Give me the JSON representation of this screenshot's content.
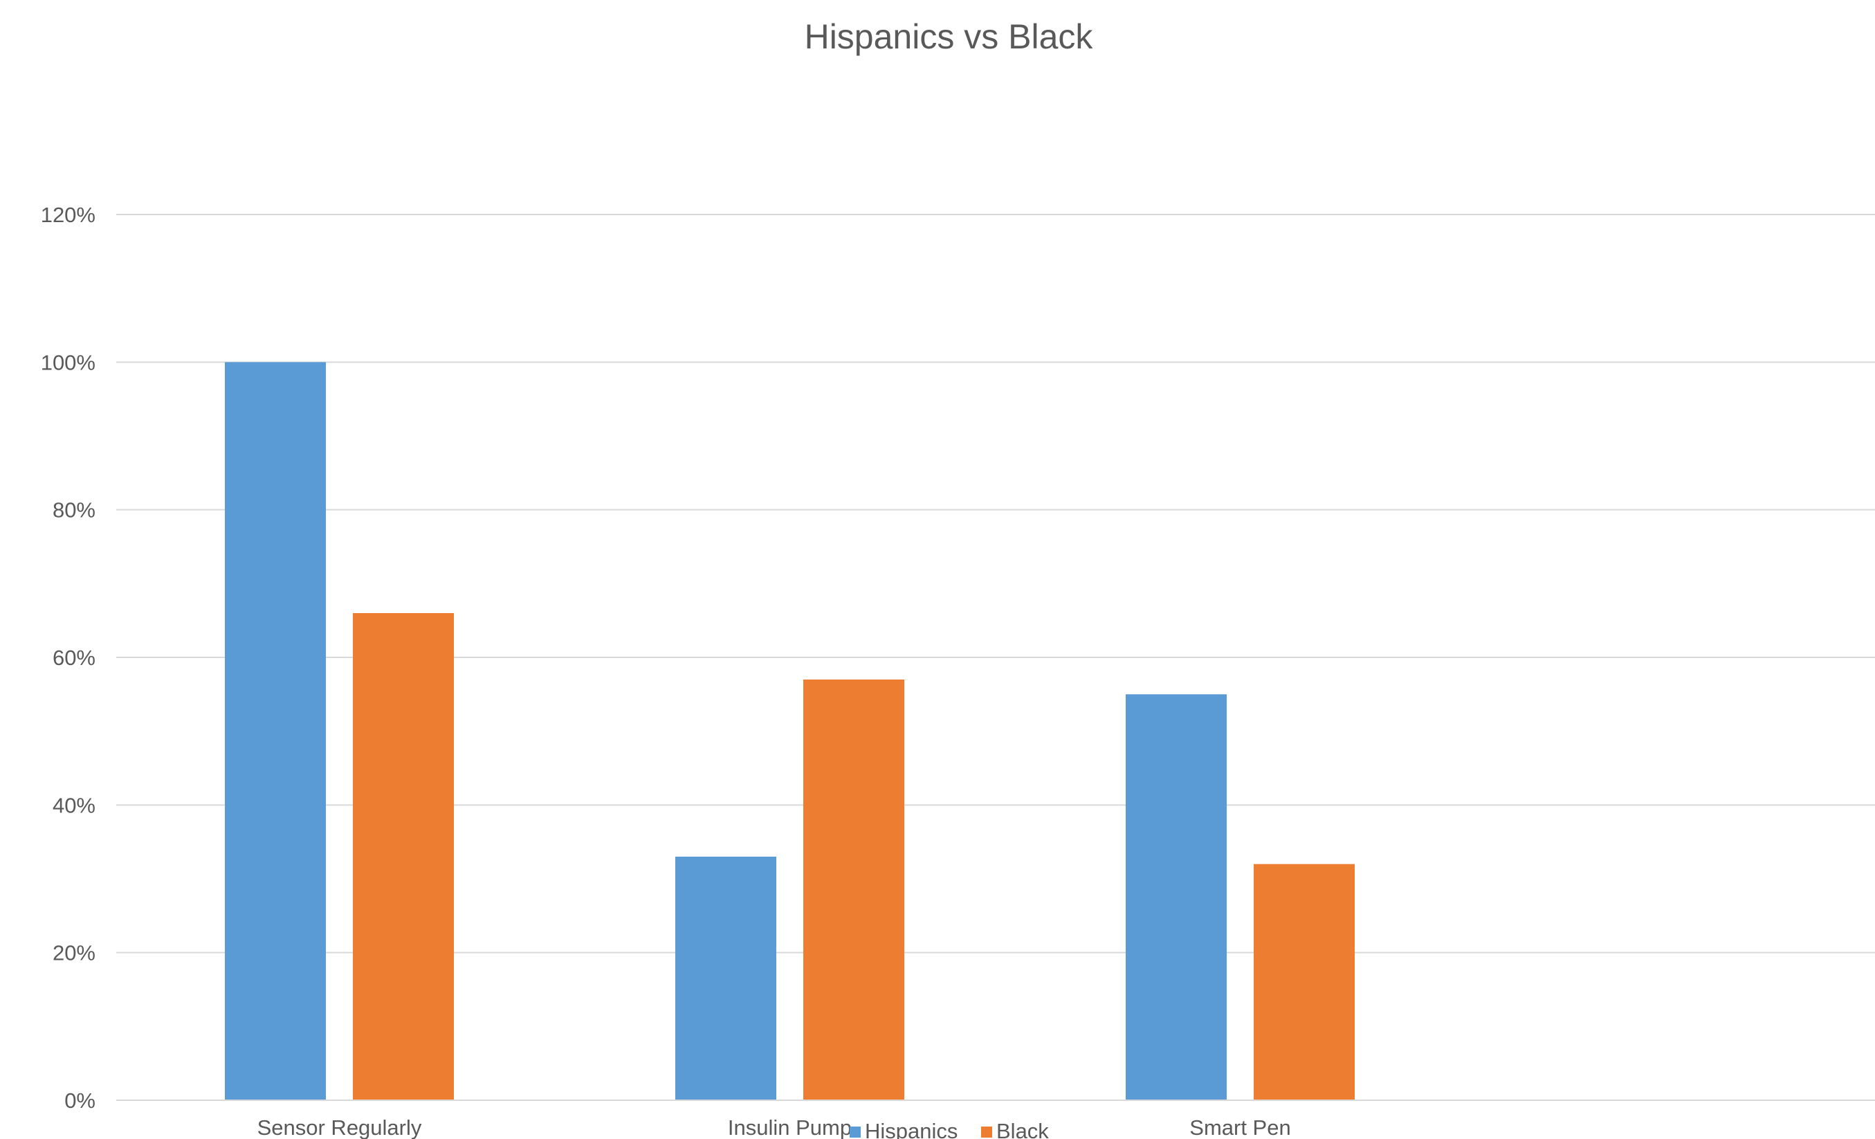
{
  "chart_data": {
    "type": "bar",
    "title": "Hispanics vs Black",
    "xlabel": "",
    "ylabel": "",
    "categories": [
      "Sensor Regularly",
      "Insulin Pump",
      "Smart Pen"
    ],
    "series": [
      {
        "name": "Hispanics",
        "color": "#5b9bd5",
        "values": [
          1.0,
          0.33,
          0.55
        ]
      },
      {
        "name": "Black",
        "color": "#ed7d31",
        "values": [
          0.66,
          0.57,
          0.32
        ]
      }
    ],
    "ylim": [
      0,
      1.2
    ],
    "yticks": [
      0,
      0.2,
      0.4,
      0.6,
      0.8,
      1.0,
      1.2
    ],
    "ytick_labels": [
      "0%",
      "20%",
      "40%",
      "60%",
      "80%",
      "100%",
      "120%"
    ],
    "value_format": "percent",
    "grid": true,
    "legend_position": "bottom"
  }
}
